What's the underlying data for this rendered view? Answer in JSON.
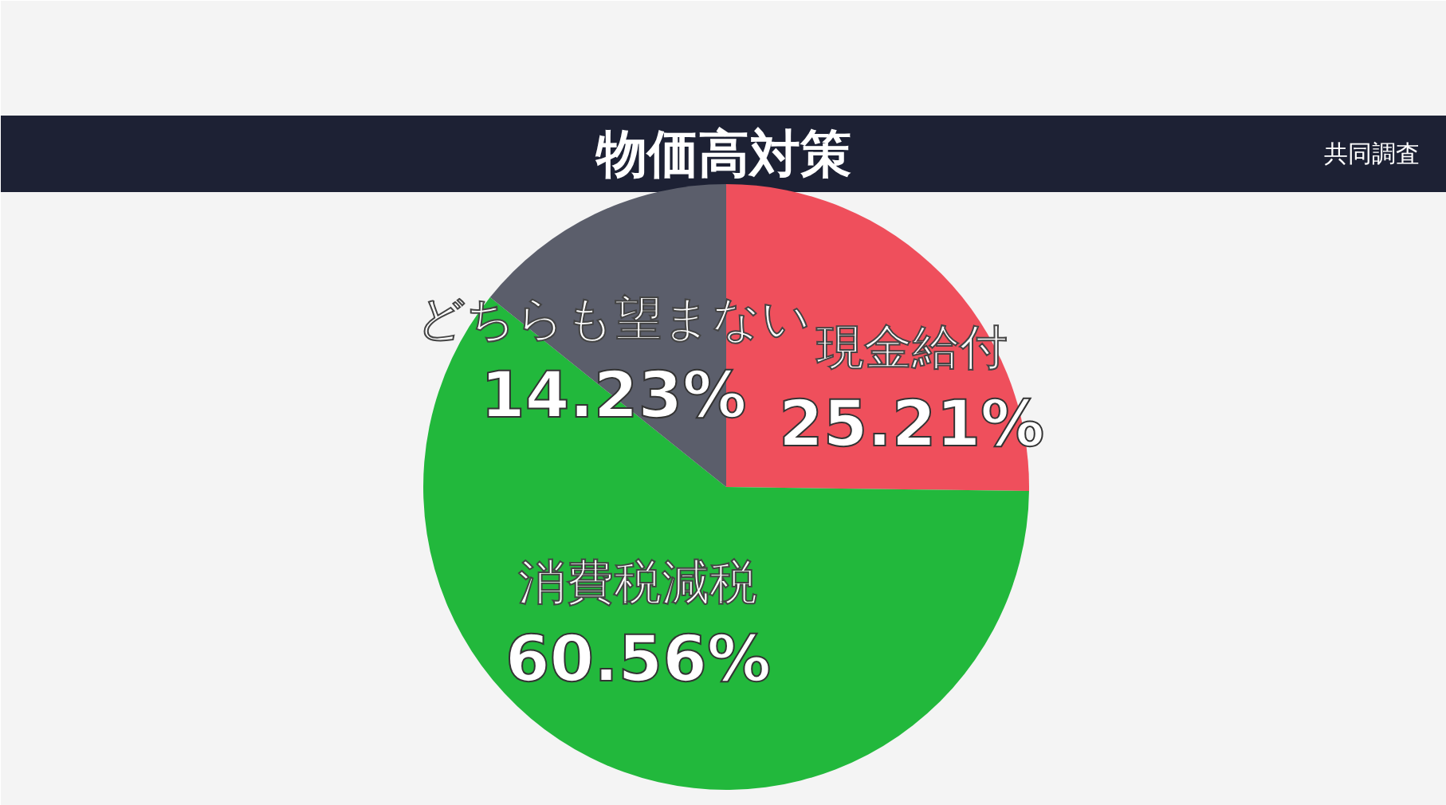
{
  "chart_data": {
    "type": "pie",
    "title": "物価高対策",
    "categories": [
      "現金給付",
      "消費税減税",
      "どちらも望まない"
    ],
    "values": [
      25.21,
      60.56,
      14.23
    ],
    "colors": [
      "#ef4f5c",
      "#22b83c",
      "#5b5e6b"
    ],
    "value_labels": [
      "25.21%",
      "60.56%",
      "14.23%"
    ],
    "annotations": [
      "共同調査"
    ]
  }
}
